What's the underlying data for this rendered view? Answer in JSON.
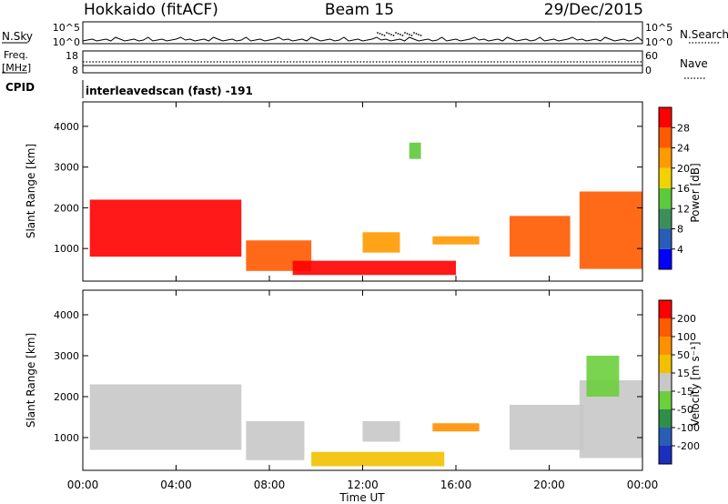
{
  "header": {
    "site": "Hokkaido (fitACF)",
    "beam": "Beam 15",
    "date": "29/Dec/2015"
  },
  "small_panels": {
    "nsky_label": "N.Sky",
    "nsky_ticks": [
      "10^5",
      "10^0"
    ],
    "nsearch_label": "N.Search",
    "nsearch_ticks": [
      "10^5",
      "10^0"
    ],
    "freq_label_1": "Freq.",
    "freq_label_2": "[MHz]",
    "freq_ticks": [
      "18",
      "8"
    ],
    "nave_label": "Nave",
    "nave_ticks": [
      "60",
      "0"
    ],
    "cpid_label": "CPID",
    "cpid_value": "interleavedscan (fast) -191"
  },
  "chart_data": [
    {
      "type": "heatmap",
      "name": "power",
      "ylabel": "Slant Range [km]",
      "yticks": [
        "1000",
        "2000",
        "3000",
        "4000"
      ],
      "ylim": [
        200,
        4600
      ],
      "xlim_hours": [
        0,
        24
      ],
      "colorbar_label": "Power [dB]",
      "colorbar_ticks": [
        "4",
        "8",
        "12",
        "16",
        "20",
        "24",
        "28"
      ],
      "colors": [
        "#0000ff",
        "#2a5db5",
        "#3d8f5a",
        "#5ec93c",
        "#f2d200",
        "#ff9a00",
        "#ff5a00",
        "#ff0000"
      ],
      "regions": [
        {
          "t0": 0.3,
          "t1": 6.8,
          "r0": 800,
          "r1": 2200,
          "level": 7
        },
        {
          "t0": 7.0,
          "t1": 9.8,
          "r0": 450,
          "r1": 1200,
          "level": 6
        },
        {
          "t0": 9.0,
          "t1": 16.0,
          "r0": 350,
          "r1": 700,
          "level": 7
        },
        {
          "t0": 12.0,
          "t1": 13.6,
          "r0": 900,
          "r1": 1400,
          "level": 5
        },
        {
          "t0": 15.0,
          "t1": 17.0,
          "r0": 1100,
          "r1": 1300,
          "level": 5
        },
        {
          "t0": 18.3,
          "t1": 20.9,
          "r0": 800,
          "r1": 1800,
          "level": 6
        },
        {
          "t0": 21.3,
          "t1": 24.0,
          "r0": 500,
          "r1": 2400,
          "level": 6
        },
        {
          "t0": 14.0,
          "t1": 14.5,
          "r0": 3200,
          "r1": 3600,
          "level": 3
        }
      ]
    },
    {
      "type": "heatmap",
      "name": "velocity",
      "ylabel": "Slant Range [km]",
      "yticks": [
        "1000",
        "2000",
        "3000",
        "4000"
      ],
      "ylim": [
        200,
        4600
      ],
      "xlim_hours": [
        0,
        24
      ],
      "xticks": [
        "00:00",
        "04:00",
        "08:00",
        "12:00",
        "16:00",
        "20:00",
        "00:00"
      ],
      "xlabel": "Time UT",
      "colorbar_label": "Velocity [m s⁻¹]",
      "colorbar_ticks": [
        "200",
        "100",
        "50",
        "15",
        "-15",
        "-50",
        "-100",
        "-200"
      ],
      "colors": [
        "#1a2fbf",
        "#2a5db5",
        "#2f8f4a",
        "#6ccf3c",
        "#c8c8c8",
        "#f2c000",
        "#ff9000",
        "#ff5a00",
        "#ff0000"
      ],
      "regions": [
        {
          "t0": 0.3,
          "t1": 6.8,
          "r0": 700,
          "r1": 2300,
          "level": 4
        },
        {
          "t0": 7.0,
          "t1": 9.5,
          "r0": 450,
          "r1": 1400,
          "level": 4
        },
        {
          "t0": 9.8,
          "t1": 15.5,
          "r0": 300,
          "r1": 650,
          "level": 5
        },
        {
          "t0": 12.0,
          "t1": 13.6,
          "r0": 900,
          "r1": 1400,
          "level": 4
        },
        {
          "t0": 15.0,
          "t1": 17.0,
          "r0": 1150,
          "r1": 1350,
          "level": 6
        },
        {
          "t0": 18.3,
          "t1": 21.5,
          "r0": 700,
          "r1": 1800,
          "level": 4
        },
        {
          "t0": 21.3,
          "t1": 24.0,
          "r0": 500,
          "r1": 2400,
          "level": 4
        },
        {
          "t0": 21.6,
          "t1": 23.0,
          "r0": 2000,
          "r1": 3000,
          "level": 3
        }
      ]
    }
  ]
}
